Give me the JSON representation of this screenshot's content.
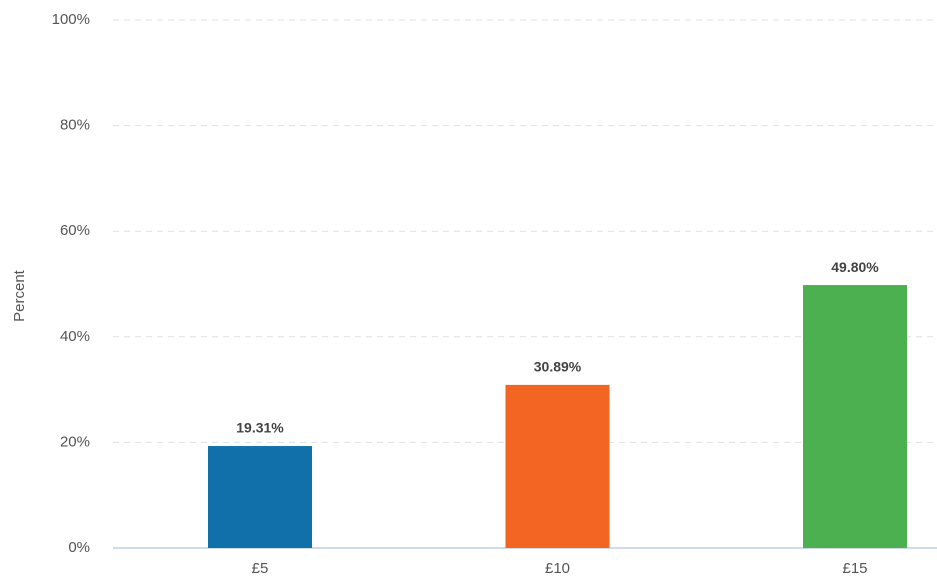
{
  "chart_data": {
    "type": "bar",
    "ylabel": "Percent",
    "categories": [
      "£5",
      "£10",
      "£15"
    ],
    "values": [
      19.31,
      30.89,
      49.8
    ],
    "value_labels": [
      "19.31%",
      "30.89%",
      "49.80%"
    ],
    "colors": [
      "#1170aa",
      "#f26522",
      "#4caf50"
    ],
    "ylim": [
      0,
      100
    ],
    "yticks": [
      {
        "value": 0,
        "label": "0%"
      },
      {
        "value": 20,
        "label": "20%"
      },
      {
        "value": 40,
        "label": "40%"
      },
      {
        "value": 60,
        "label": "60%"
      },
      {
        "value": 80,
        "label": "80%"
      },
      {
        "value": 100,
        "label": "100%"
      }
    ],
    "grid": true
  }
}
